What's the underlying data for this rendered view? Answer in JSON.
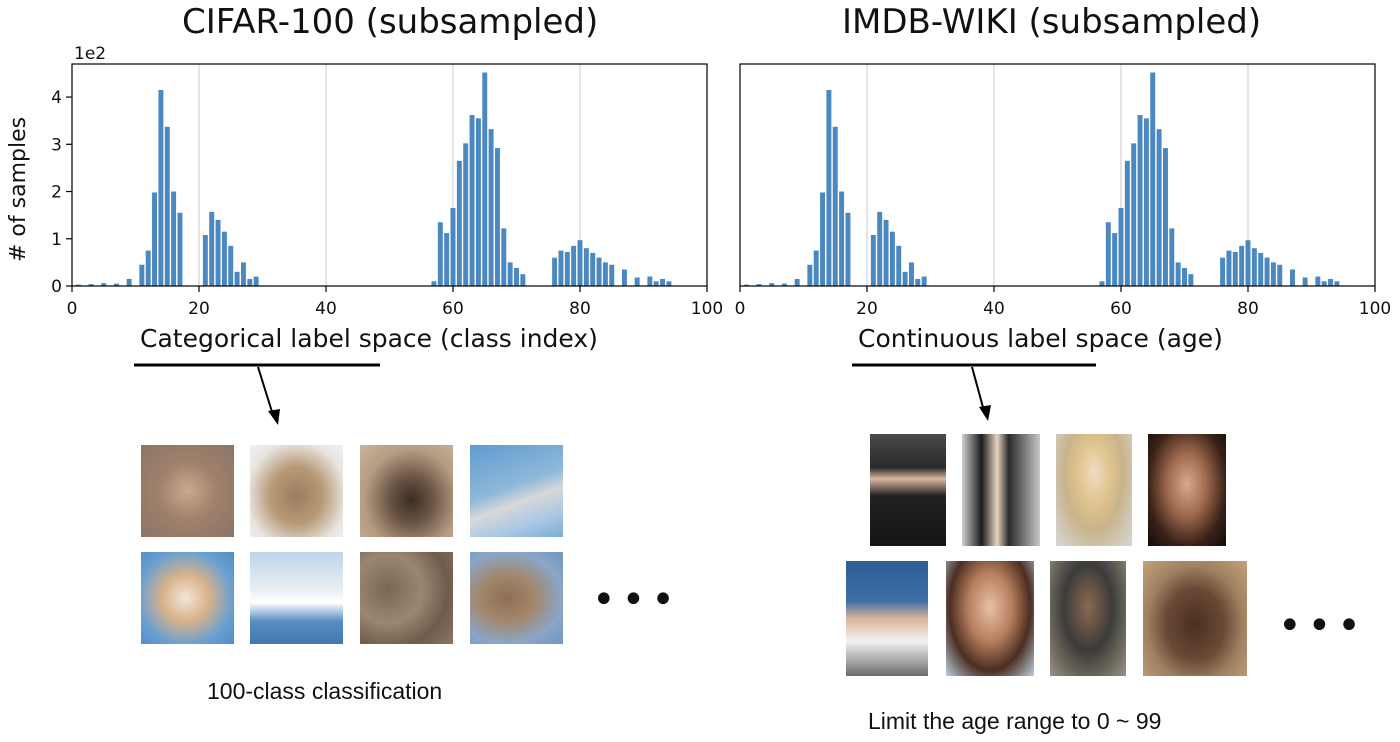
{
  "left": {
    "title": "CIFAR-100 (subsampled)",
    "ylabel": "# of samples",
    "sci_label": "1e2",
    "xlabel": "Categorical label space (class index)",
    "caption": "100-class classification",
    "thumb_icons": [
      "cat-thumbnail",
      "car-thumbnail",
      "deer-thumbnail",
      "airplane-thumbnail",
      "dog-thumbnail",
      "boat-thumbnail",
      "camouflage-thumbnail",
      "seal-thumbnail"
    ],
    "ellipsis": "•••"
  },
  "right": {
    "title": "IMDB-WIKI (subsampled)",
    "xlabel": "Continuous label space (age)",
    "caption": "Limit the age range to 0 ~ 99",
    "thumb_icons": [
      "man-in-suit-photo",
      "two-people-photo",
      "blonde-woman-photo",
      "brunette-woman-photo",
      "tennis-player-photo",
      "woman-portrait-photo",
      "man-with-hat-photo",
      "smiling-man-cap-photo"
    ],
    "ellipsis": "•••"
  },
  "colors": {
    "bar": "#4a88bf",
    "grid": "#c8c8c8",
    "axis": "#000000"
  },
  "chart_data": [
    {
      "type": "bar",
      "title": "CIFAR-100 (subsampled)",
      "xlabel": "Categorical label space (class index)",
      "ylabel": "# of samples",
      "y_scale_label": "1e2",
      "xlim": [
        0,
        100
      ],
      "ylim": [
        0,
        4.7
      ],
      "xticks": [
        0,
        20,
        40,
        60,
        80,
        100
      ],
      "yticks": [
        0,
        1,
        2,
        3,
        4
      ],
      "grid_x": [
        20,
        40,
        60,
        80
      ],
      "x": [
        1,
        3,
        5,
        7,
        9,
        11,
        12,
        13,
        14,
        15,
        16,
        17,
        21,
        22,
        23,
        24,
        25,
        26,
        27,
        28,
        29,
        57,
        58,
        59,
        60,
        61,
        62,
        63,
        64,
        65,
        66,
        67,
        68,
        69,
        70,
        71,
        76,
        77,
        78,
        79,
        80,
        81,
        82,
        83,
        84,
        85,
        87,
        89,
        91,
        92,
        93,
        94
      ],
      "values": [
        0.03,
        0.04,
        0.06,
        0.05,
        0.15,
        0.45,
        0.75,
        1.98,
        4.15,
        3.37,
        2.0,
        1.55,
        1.08,
        1.57,
        1.4,
        1.15,
        0.85,
        0.3,
        0.5,
        0.15,
        0.2,
        0.1,
        1.35,
        1.12,
        1.65,
        2.65,
        3.02,
        3.62,
        3.55,
        4.52,
        3.32,
        2.92,
        1.22,
        0.5,
        0.38,
        0.25,
        0.6,
        0.75,
        0.72,
        0.85,
        0.97,
        0.8,
        0.7,
        0.6,
        0.5,
        0.45,
        0.35,
        0.18,
        0.2,
        0.1,
        0.15,
        0.1
      ]
    },
    {
      "type": "bar",
      "title": "IMDB-WIKI (subsampled)",
      "xlabel": "Continuous label space (age)",
      "xlim": [
        0,
        100
      ],
      "ylim": [
        0,
        4.7
      ],
      "xticks": [
        0,
        20,
        40,
        60,
        80,
        100
      ],
      "grid_x": [
        20,
        40,
        60,
        80
      ],
      "x": [
        1,
        3,
        5,
        7,
        9,
        11,
        12,
        13,
        14,
        15,
        16,
        17,
        21,
        22,
        23,
        24,
        25,
        26,
        27,
        28,
        29,
        57,
        58,
        59,
        60,
        61,
        62,
        63,
        64,
        65,
        66,
        67,
        68,
        69,
        70,
        71,
        76,
        77,
        78,
        79,
        80,
        81,
        82,
        83,
        84,
        85,
        87,
        89,
        91,
        92,
        93,
        94
      ],
      "values": [
        0.03,
        0.04,
        0.06,
        0.05,
        0.15,
        0.45,
        0.75,
        1.98,
        4.15,
        3.37,
        2.0,
        1.55,
        1.08,
        1.57,
        1.4,
        1.15,
        0.85,
        0.3,
        0.5,
        0.15,
        0.2,
        0.1,
        1.35,
        1.12,
        1.65,
        2.65,
        3.02,
        3.62,
        3.55,
        4.52,
        3.32,
        2.92,
        1.22,
        0.5,
        0.38,
        0.25,
        0.6,
        0.75,
        0.72,
        0.85,
        0.97,
        0.8,
        0.7,
        0.6,
        0.5,
        0.45,
        0.35,
        0.18,
        0.2,
        0.1,
        0.15,
        0.1
      ]
    }
  ]
}
